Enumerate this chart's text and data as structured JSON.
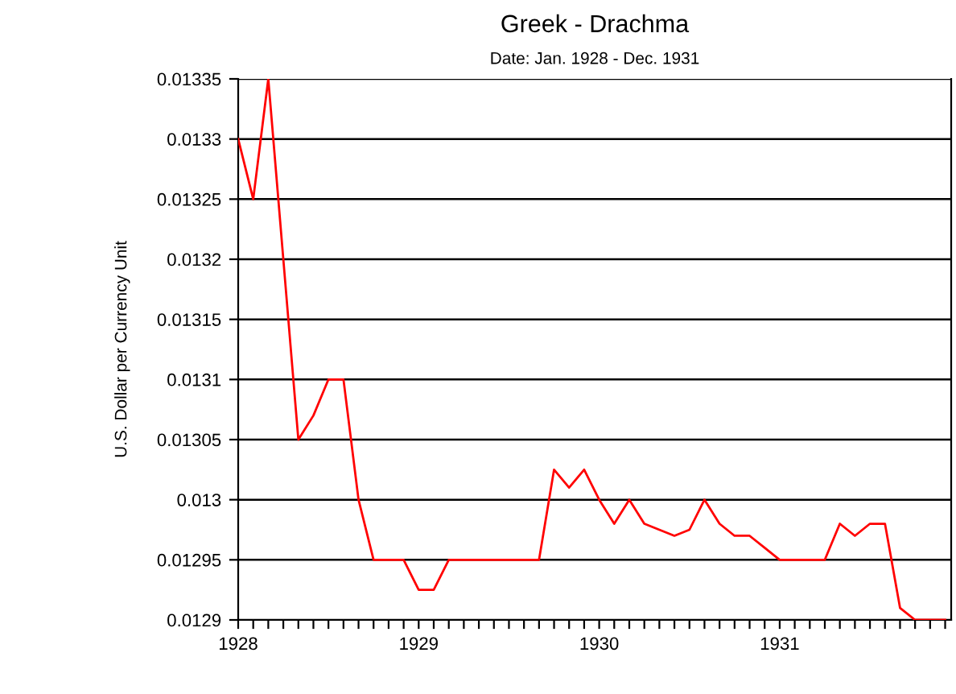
{
  "chart_data": {
    "type": "line",
    "title": "Greek - Drachma",
    "subtitle": "Date: Jan. 1928 - Dec. 1931",
    "ylabel": "U.S. Dollar per Currency Unit",
    "x": [
      1928.0,
      1928.0833,
      1928.1667,
      1928.25,
      1928.3333,
      1928.4167,
      1928.5,
      1928.5833,
      1928.6667,
      1928.75,
      1928.8333,
      1928.9167,
      1929.0,
      1929.0833,
      1929.1667,
      1929.25,
      1929.3333,
      1929.4167,
      1929.5,
      1929.5833,
      1929.6667,
      1929.75,
      1929.8333,
      1929.9167,
      1930.0,
      1930.0833,
      1930.1667,
      1930.25,
      1930.3333,
      1930.4167,
      1930.5,
      1930.5833,
      1930.6667,
      1930.75,
      1930.8333,
      1930.9167,
      1931.0,
      1931.0833,
      1931.1667,
      1931.25,
      1931.3333,
      1931.4167,
      1931.5,
      1931.5833,
      1931.6667,
      1931.75,
      1931.8333,
      1931.9167
    ],
    "series": [
      {
        "color": "#ff0000",
        "values": [
          0.0133,
          0.01325,
          0.01335,
          0.0132,
          0.01305,
          0.01307,
          0.0131,
          0.0131,
          0.013,
          0.01295,
          0.01295,
          0.01295,
          0.012925,
          0.012925,
          0.01295,
          0.01295,
          0.01295,
          0.01295,
          0.01295,
          0.01295,
          0.01295,
          0.013025,
          0.01301,
          0.013025,
          0.013,
          0.01298,
          0.013,
          0.01298,
          0.012975,
          0.01297,
          0.012975,
          0.013,
          0.01298,
          0.01297,
          0.01297,
          0.01296,
          0.01295,
          0.01295,
          0.01295,
          0.01295,
          0.01298,
          0.01297,
          0.01298,
          0.01298,
          0.01291,
          0.0129,
          0.0129,
          0.0129
        ]
      }
    ],
    "xlim": [
      1928.0,
      1931.95
    ],
    "xticks": [
      1928,
      {
        "value": 1928.0833,
        "label": null
      },
      {
        "value": 1928.1667,
        "label": null
      },
      {
        "value": 1928.25,
        "label": null
      },
      {
        "value": 1928.3333,
        "label": null
      },
      {
        "value": 1928.4167,
        "label": null
      },
      {
        "value": 1928.5,
        "label": null
      },
      {
        "value": 1928.5833,
        "label": null
      },
      {
        "value": 1928.6667,
        "label": null
      },
      {
        "value": 1928.75,
        "label": null
      },
      {
        "value": 1928.8333,
        "label": null
      },
      {
        "value": 1928.9167,
        "label": null
      },
      1929,
      {
        "value": 1929.0833,
        "label": null
      },
      {
        "value": 1929.1667,
        "label": null
      },
      {
        "value": 1929.25,
        "label": null
      },
      {
        "value": 1929.3333,
        "label": null
      },
      {
        "value": 1929.4167,
        "label": null
      },
      {
        "value": 1929.5,
        "label": null
      },
      {
        "value": 1929.5833,
        "label": null
      },
      {
        "value": 1929.6667,
        "label": null
      },
      {
        "value": 1929.75,
        "label": null
      },
      {
        "value": 1929.8333,
        "label": null
      },
      {
        "value": 1929.9167,
        "label": null
      },
      1930,
      {
        "value": 1930.0833,
        "label": null
      },
      {
        "value": 1930.1667,
        "label": null
      },
      {
        "value": 1930.25,
        "label": null
      },
      {
        "value": 1930.3333,
        "label": null
      },
      {
        "value": 1930.4167,
        "label": null
      },
      {
        "value": 1930.5,
        "label": null
      },
      {
        "value": 1930.5833,
        "label": null
      },
      {
        "value": 1930.6667,
        "label": null
      },
      {
        "value": 1930.75,
        "label": null
      },
      {
        "value": 1930.8333,
        "label": null
      },
      {
        "value": 1930.9167,
        "label": null
      },
      1931,
      {
        "value": 1931.0833,
        "label": null
      },
      {
        "value": 1931.1667,
        "label": null
      },
      {
        "value": 1931.25,
        "label": null
      },
      {
        "value": 1931.3333,
        "label": null
      },
      {
        "value": 1931.4167,
        "label": null
      },
      {
        "value": 1931.5,
        "label": null
      },
      {
        "value": 1931.5833,
        "label": null
      },
      {
        "value": 1931.6667,
        "label": null
      },
      {
        "value": 1931.75,
        "label": null
      },
      {
        "value": 1931.8333,
        "label": null
      },
      {
        "value": 1931.9167,
        "label": null
      }
    ],
    "ylim": [
      0.0129,
      0.01335
    ],
    "yticks": [
      0.0129,
      0.01295,
      0.013,
      0.01305,
      0.0131,
      0.01315,
      0.0132,
      0.01325,
      0.0133,
      0.01335
    ],
    "grid": "y",
    "marker": "none",
    "line_style": "solid",
    "legend": false
  }
}
